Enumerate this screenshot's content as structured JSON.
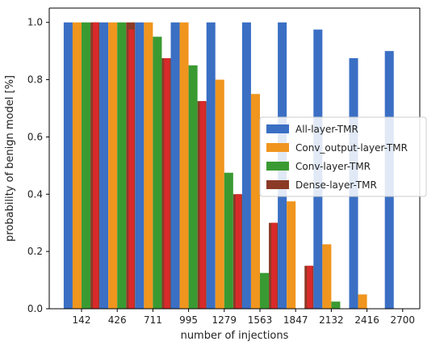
{
  "chart_data": {
    "type": "bar",
    "title": "",
    "xlabel": "number of injections",
    "ylabel": "probability of benign model [%]",
    "ylim": [
      0,
      1.05
    ],
    "yticks": [
      "0.0",
      "0.2",
      "0.4",
      "0.6",
      "0.8",
      "1.0"
    ],
    "grid": false,
    "legend_position": "center-right",
    "categories": [
      "142",
      "426",
      "711",
      "995",
      "1279",
      "1563",
      "1847",
      "2132",
      "2416",
      "2700"
    ],
    "series": [
      {
        "name": "All-layer-TMR",
        "color": "#3a6fc4",
        "values": [
          1.0,
          1.0,
          1.0,
          1.0,
          1.0,
          1.0,
          1.0,
          0.975,
          0.875,
          0.9
        ]
      },
      {
        "name": "Conv_output-layer-TMR",
        "color": "#f0951e",
        "values": [
          1.0,
          1.0,
          1.0,
          1.0,
          0.8,
          0.75,
          0.375,
          0.225,
          0.05,
          0.0
        ]
      },
      {
        "name": "Conv-layer-TMR",
        "color": "#3a9a32",
        "values": [
          1.0,
          1.0,
          0.95,
          0.85,
          0.475,
          0.125,
          0.0,
          0.025,
          0.0,
          0.0
        ]
      },
      {
        "name": "Dense-layer-TMR",
        "color": "#8b3a26",
        "values": [
          1.0,
          1.0,
          0.875,
          0.725,
          0.4,
          0.3,
          0.15,
          0.0,
          0.0,
          0.0
        ]
      }
    ],
    "overlay_series": [
      {
        "color": "#d92a2a",
        "values": [
          1.0,
          0.975,
          0.875,
          0.725,
          0.4,
          0.3,
          0.15,
          0.0,
          0.0,
          0.0
        ]
      }
    ]
  }
}
